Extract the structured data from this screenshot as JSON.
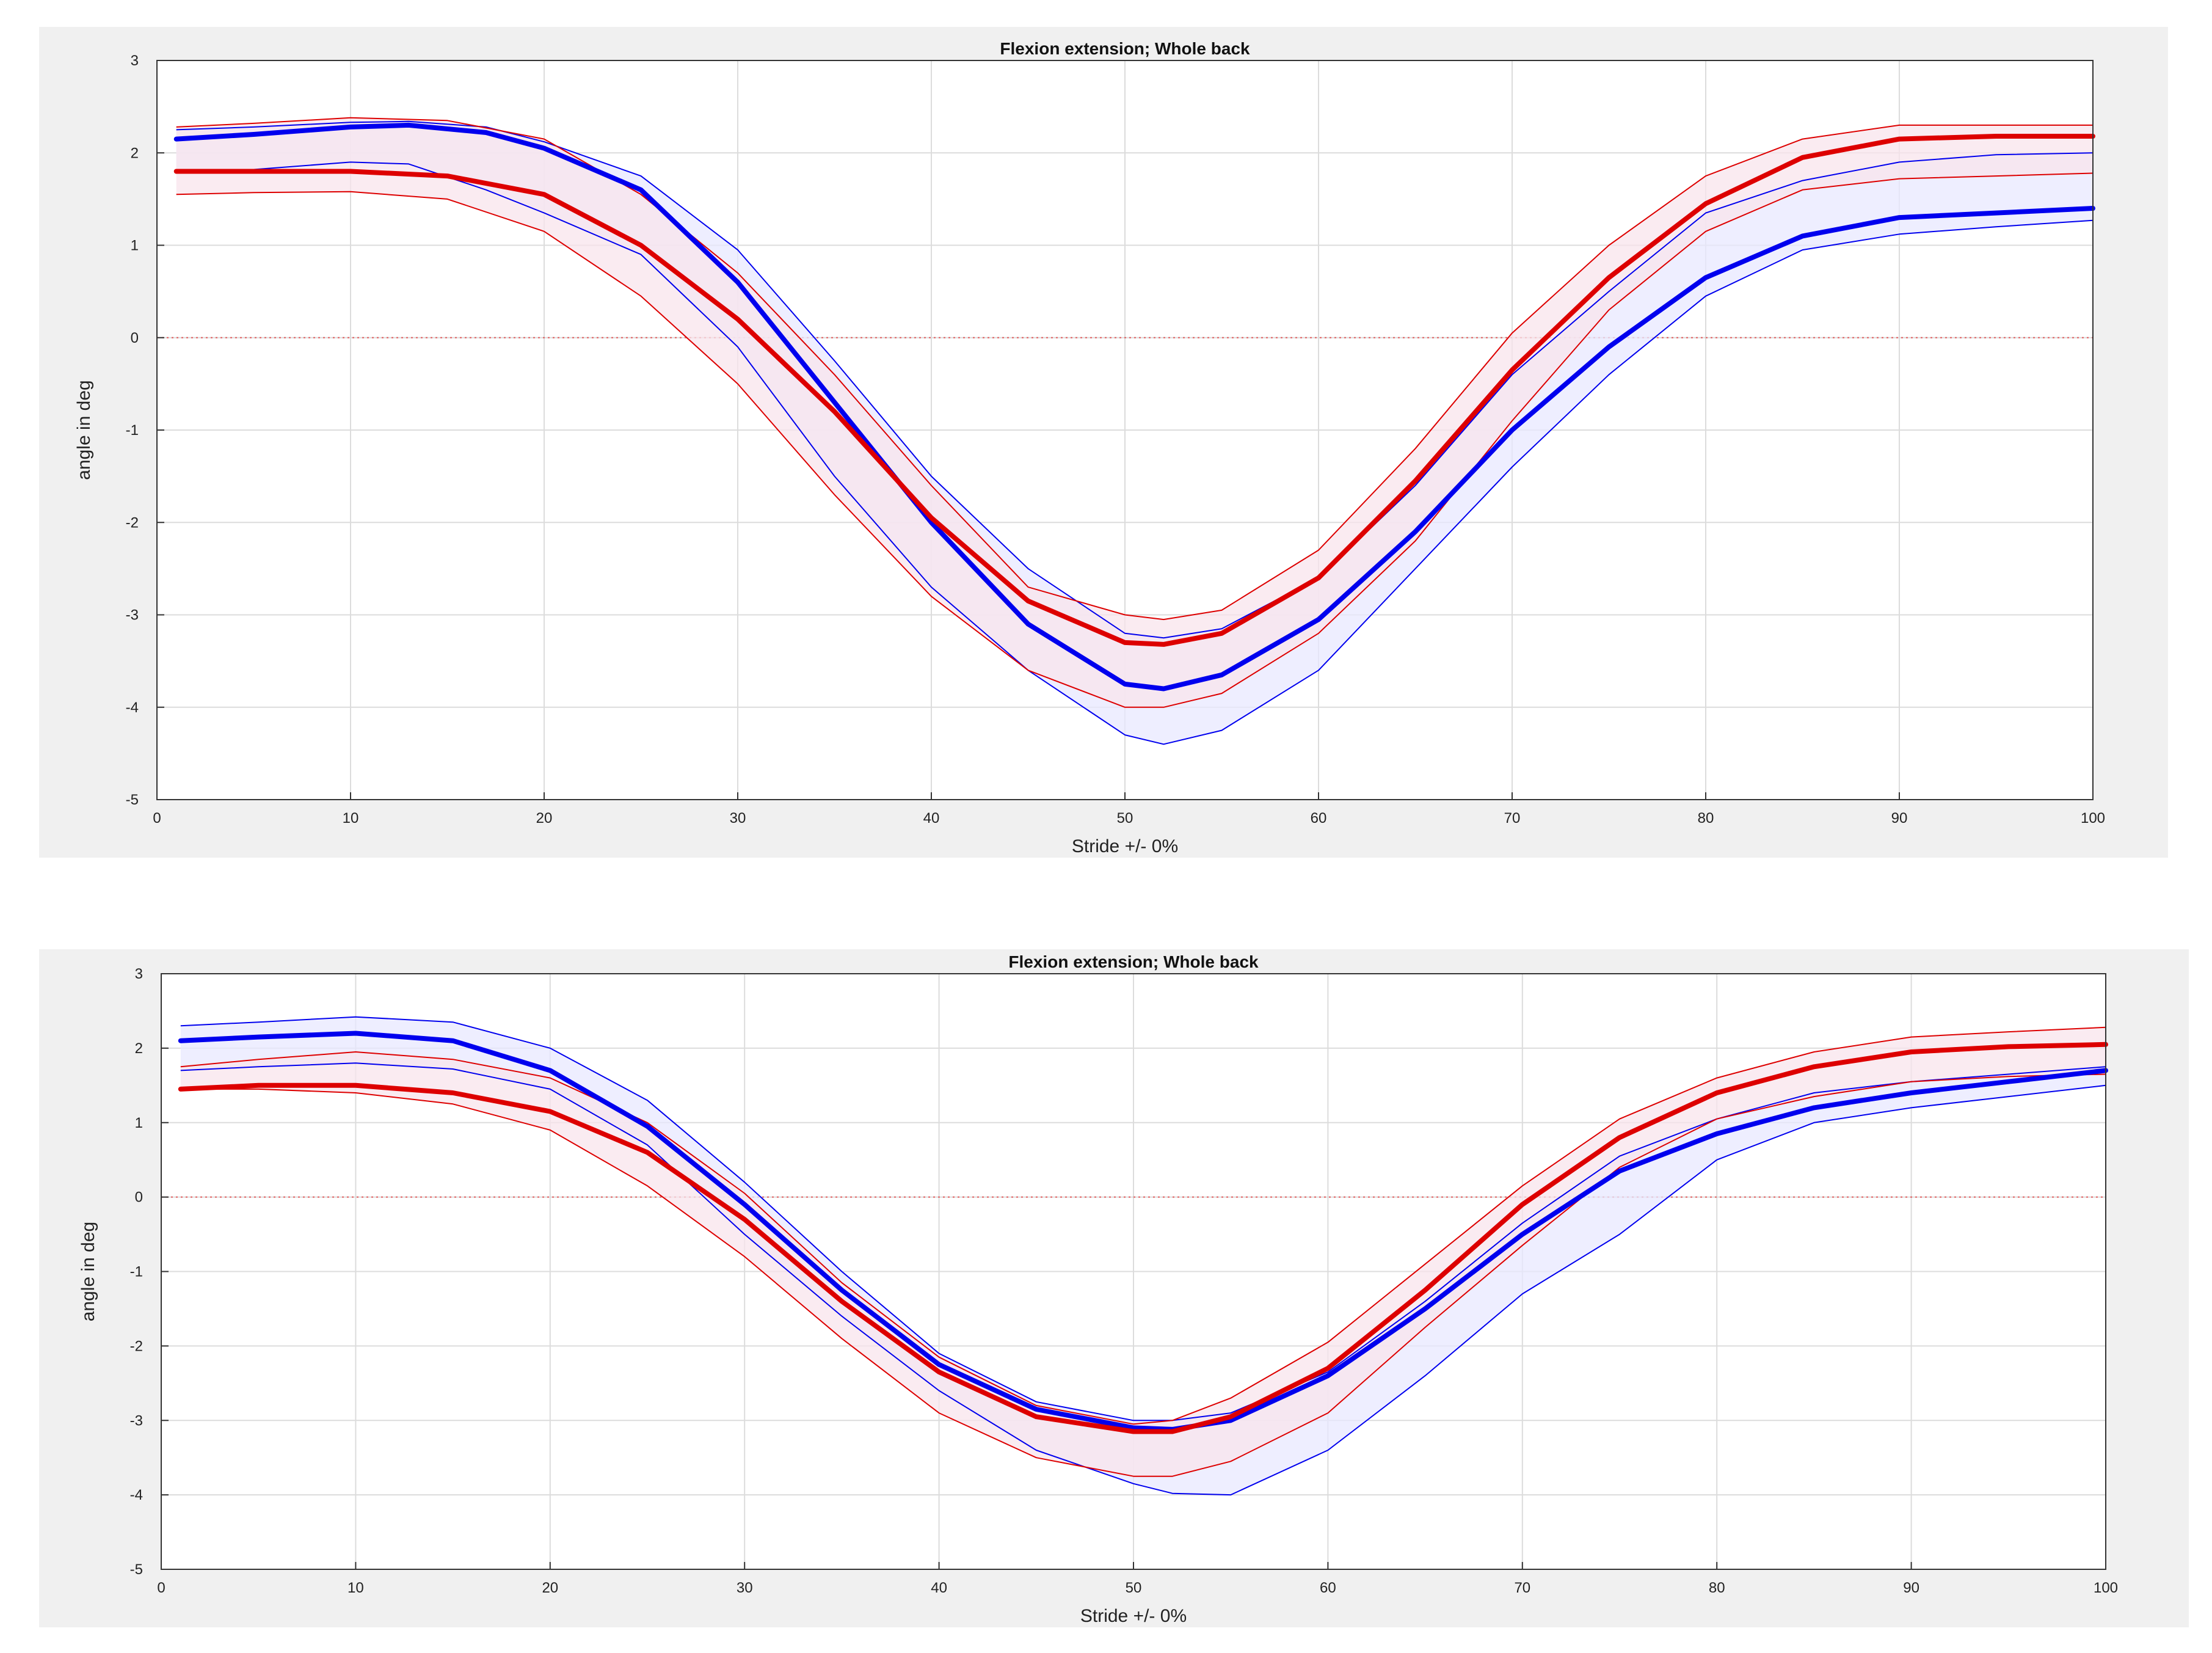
{
  "chart_data": [
    {
      "type": "line",
      "title": "Flexion extension; Whole back",
      "xlabel": "Stride +/- 0%",
      "ylabel": "angle in deg",
      "xlim": [
        0,
        100
      ],
      "ylim": [
        -5,
        3
      ],
      "xticks": [
        0,
        10,
        20,
        30,
        40,
        50,
        60,
        70,
        80,
        90,
        100
      ],
      "yticks": [
        3,
        2,
        1,
        0,
        -1,
        -2,
        -3,
        -4,
        -5
      ],
      "grid": true,
      "zero_line": {
        "y": 0,
        "style": "dotted",
        "color": "#e06060"
      },
      "series": [
        {
          "color": "#0000ee",
          "band_fill": "#e8e8ff",
          "x": [
            1,
            5,
            10,
            13,
            17,
            20,
            25,
            30,
            35,
            40,
            45,
            50,
            52,
            55,
            60,
            65,
            70,
            75,
            80,
            85,
            90,
            95,
            100
          ],
          "mean": [
            2.15,
            2.2,
            2.28,
            2.3,
            2.22,
            2.05,
            1.6,
            0.6,
            -0.7,
            -2.0,
            -3.1,
            -3.75,
            -3.8,
            -3.65,
            -3.05,
            -2.1,
            -1.0,
            -0.1,
            0.65,
            1.1,
            1.3,
            1.35,
            1.4
          ],
          "upper": [
            2.25,
            2.28,
            2.33,
            2.34,
            2.28,
            2.12,
            1.75,
            0.95,
            -0.25,
            -1.5,
            -2.5,
            -3.2,
            -3.25,
            -3.15,
            -2.6,
            -1.6,
            -0.4,
            0.5,
            1.35,
            1.7,
            1.9,
            1.98,
            2.0
          ],
          "lower": [
            1.8,
            1.82,
            1.9,
            1.88,
            1.6,
            1.35,
            0.9,
            -0.1,
            -1.5,
            -2.7,
            -3.6,
            -4.3,
            -4.4,
            -4.25,
            -3.6,
            -2.5,
            -1.4,
            -0.4,
            0.45,
            0.95,
            1.12,
            1.2,
            1.27
          ]
        },
        {
          "color": "#dd0000",
          "band_fill": "#f8e4ec",
          "x": [
            1,
            5,
            10,
            15,
            20,
            25,
            30,
            35,
            40,
            45,
            50,
            52,
            55,
            60,
            65,
            70,
            75,
            80,
            85,
            90,
            95,
            100
          ],
          "mean": [
            1.8,
            1.8,
            1.8,
            1.75,
            1.55,
            1.0,
            0.2,
            -0.8,
            -1.95,
            -2.85,
            -3.3,
            -3.32,
            -3.2,
            -2.6,
            -1.55,
            -0.35,
            0.65,
            1.45,
            1.95,
            2.15,
            2.18,
            2.18
          ],
          "upper": [
            2.28,
            2.32,
            2.38,
            2.35,
            2.15,
            1.55,
            0.7,
            -0.4,
            -1.6,
            -2.7,
            -3.0,
            -3.05,
            -2.95,
            -2.3,
            -1.2,
            0.05,
            1.0,
            1.75,
            2.15,
            2.3,
            2.3,
            2.3
          ],
          "lower": [
            1.55,
            1.57,
            1.58,
            1.5,
            1.15,
            0.45,
            -0.5,
            -1.7,
            -2.8,
            -3.6,
            -4.0,
            -4.0,
            -3.85,
            -3.2,
            -2.2,
            -0.9,
            0.3,
            1.15,
            1.6,
            1.72,
            1.75,
            1.78
          ]
        }
      ]
    },
    {
      "type": "line",
      "title": "Flexion extension; Whole back",
      "xlabel": "Stride +/- 0%",
      "ylabel": "angle in deg",
      "xlim": [
        0,
        100
      ],
      "ylim": [
        -5,
        3
      ],
      "xticks": [
        0,
        10,
        20,
        30,
        40,
        50,
        60,
        70,
        80,
        90,
        100
      ],
      "yticks": [
        3,
        2,
        1,
        0,
        -1,
        -2,
        -3,
        -4,
        -5
      ],
      "grid": true,
      "zero_line": {
        "y": 0,
        "style": "dotted",
        "color": "#e06060"
      },
      "series": [
        {
          "color": "#0000ee",
          "band_fill": "#e8e8ff",
          "x": [
            1,
            5,
            10,
            15,
            20,
            25,
            30,
            35,
            40,
            45,
            50,
            52,
            55,
            60,
            65,
            70,
            75,
            80,
            85,
            90,
            95,
            100
          ],
          "mean": [
            2.1,
            2.15,
            2.2,
            2.1,
            1.7,
            0.95,
            -0.1,
            -1.25,
            -2.25,
            -2.85,
            -3.1,
            -3.12,
            -3.0,
            -2.4,
            -1.5,
            -0.5,
            0.35,
            0.85,
            1.2,
            1.4,
            1.55,
            1.7
          ],
          "upper": [
            2.3,
            2.35,
            2.42,
            2.35,
            2.0,
            1.3,
            0.2,
            -1.0,
            -2.1,
            -2.75,
            -3.0,
            -3.0,
            -2.9,
            -2.35,
            -1.4,
            -0.35,
            0.55,
            1.05,
            1.4,
            1.55,
            1.65,
            1.75
          ],
          "lower": [
            1.7,
            1.75,
            1.8,
            1.72,
            1.45,
            0.7,
            -0.5,
            -1.6,
            -2.6,
            -3.4,
            -3.85,
            -3.98,
            -4.0,
            -3.4,
            -2.4,
            -1.3,
            -0.5,
            0.5,
            1.0,
            1.2,
            1.35,
            1.5
          ]
        },
        {
          "color": "#dd0000",
          "band_fill": "#f8e4ec",
          "x": [
            1,
            5,
            10,
            15,
            20,
            25,
            30,
            35,
            40,
            45,
            50,
            52,
            55,
            60,
            65,
            70,
            75,
            80,
            85,
            90,
            95,
            100
          ],
          "mean": [
            1.45,
            1.5,
            1.5,
            1.4,
            1.15,
            0.6,
            -0.3,
            -1.4,
            -2.35,
            -2.95,
            -3.15,
            -3.15,
            -2.95,
            -2.3,
            -1.25,
            -0.1,
            0.8,
            1.4,
            1.75,
            1.95,
            2.02,
            2.05
          ],
          "upper": [
            1.75,
            1.85,
            1.95,
            1.85,
            1.6,
            1.0,
            0.05,
            -1.15,
            -2.15,
            -2.8,
            -3.05,
            -3.0,
            -2.7,
            -1.95,
            -0.9,
            0.15,
            1.05,
            1.6,
            1.95,
            2.15,
            2.22,
            2.28
          ],
          "lower": [
            1.45,
            1.45,
            1.4,
            1.25,
            0.9,
            0.15,
            -0.8,
            -1.9,
            -2.9,
            -3.5,
            -3.75,
            -3.75,
            -3.55,
            -2.9,
            -1.75,
            -0.65,
            0.4,
            1.05,
            1.35,
            1.55,
            1.62,
            1.65
          ]
        }
      ]
    }
  ]
}
